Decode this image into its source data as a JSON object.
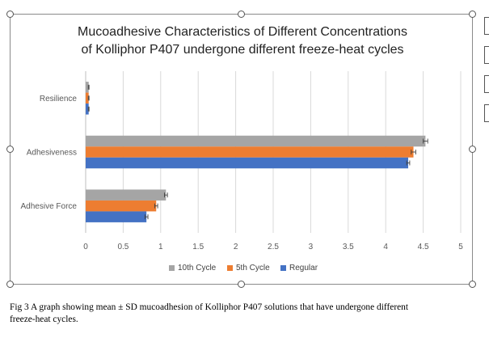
{
  "chart_data": {
    "type": "bar",
    "orientation": "horizontal",
    "title_lines": [
      "Mucoadhesive Characteristics of Different Concentrations",
      "of Kolliphor P407 undergone different freeze-heat cycles"
    ],
    "categories": [
      "Resilience",
      "Adhesiveness",
      "Adhesive Force"
    ],
    "series": [
      {
        "name": "10th Cycle",
        "color": "#a5a5a5",
        "values": [
          0.04,
          4.53,
          1.07
        ],
        "errors": [
          0.005,
          0.03,
          0.02
        ]
      },
      {
        "name": "5th Cycle",
        "color": "#ed7d31",
        "values": [
          0.04,
          4.37,
          0.94
        ],
        "errors": [
          0.005,
          0.03,
          0.02
        ]
      },
      {
        "name": "Regular",
        "color": "#4472c4",
        "values": [
          0.04,
          4.3,
          0.81
        ],
        "errors": [
          0.005,
          0.02,
          0.02
        ]
      }
    ],
    "xlim": [
      0,
      5
    ],
    "xticks": [
      "0",
      "0.5",
      "1",
      "1.5",
      "2",
      "2.5",
      "3",
      "3.5",
      "4",
      "4.5",
      "5"
    ],
    "grid": true,
    "legend_position": "bottom",
    "xlabel": "",
    "ylabel": ""
  },
  "caption": {
    "line1": "Fig 3 A graph showing mean ± SD mucoadhesion of Kolliphor P407 solutions that have undergone different",
    "line2": "freeze-heat cycles."
  },
  "side_buttons": [
    "",
    "",
    "",
    ""
  ],
  "colors": {
    "gridline": "#d9d9d9",
    "axis": "#bfbfbf",
    "text": "#595959",
    "errorbar": "#404040"
  }
}
